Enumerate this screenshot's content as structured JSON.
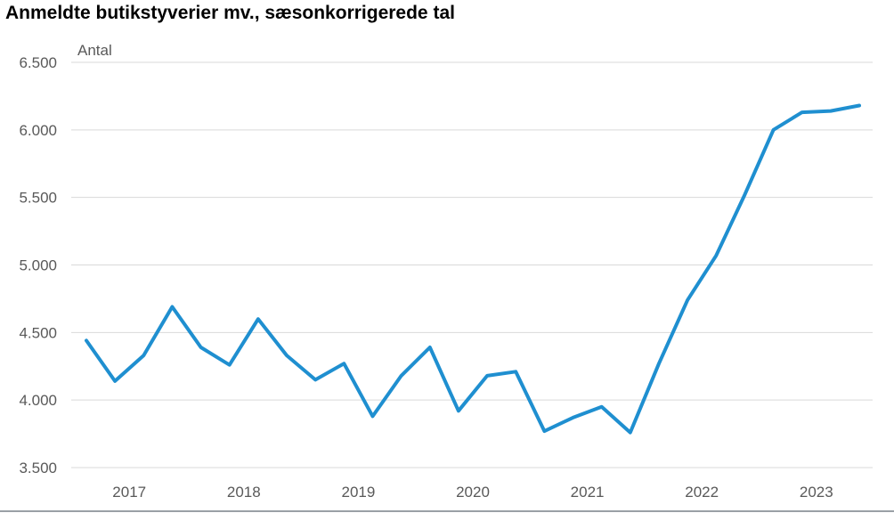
{
  "chart_data": {
    "type": "line",
    "title": "Anmeldte butikstyverier mv., sæsonkorrigerede tal",
    "ylabel": "Antal",
    "xlabel": "",
    "ylim": [
      3500,
      6500
    ],
    "y_ticks": [
      3500,
      4000,
      4500,
      5000,
      5500,
      6000,
      6500
    ],
    "y_tick_labels": [
      "3.500",
      "4.000",
      "4.500",
      "5.000",
      "5.500",
      "6.000",
      "6.500"
    ],
    "x_tick_labels": [
      "2017",
      "2018",
      "2019",
      "2020",
      "2021",
      "2022",
      "2023"
    ],
    "grid": true,
    "x": [
      "2017K1",
      "2017K2",
      "2017K3",
      "2017K4",
      "2018K1",
      "2018K2",
      "2018K3",
      "2018K4",
      "2019K1",
      "2019K2",
      "2019K3",
      "2019K4",
      "2020K1",
      "2020K2",
      "2020K3",
      "2020K4",
      "2021K1",
      "2021K2",
      "2021K3",
      "2021K4",
      "2022K1",
      "2022K2",
      "2022K3",
      "2022K4",
      "2023K1",
      "2023K2",
      "2023K3",
      "2023K4"
    ],
    "series": [
      {
        "color": "#1f8fd0",
        "values": [
          4440,
          4140,
          4330,
          4690,
          4390,
          4260,
          4600,
          4330,
          4150,
          4270,
          3880,
          4180,
          4390,
          3920,
          4180,
          4210,
          3770,
          3870,
          3950,
          3760,
          4270,
          4740,
          5070,
          5520,
          6000,
          6130,
          6140,
          6180
        ]
      }
    ]
  }
}
